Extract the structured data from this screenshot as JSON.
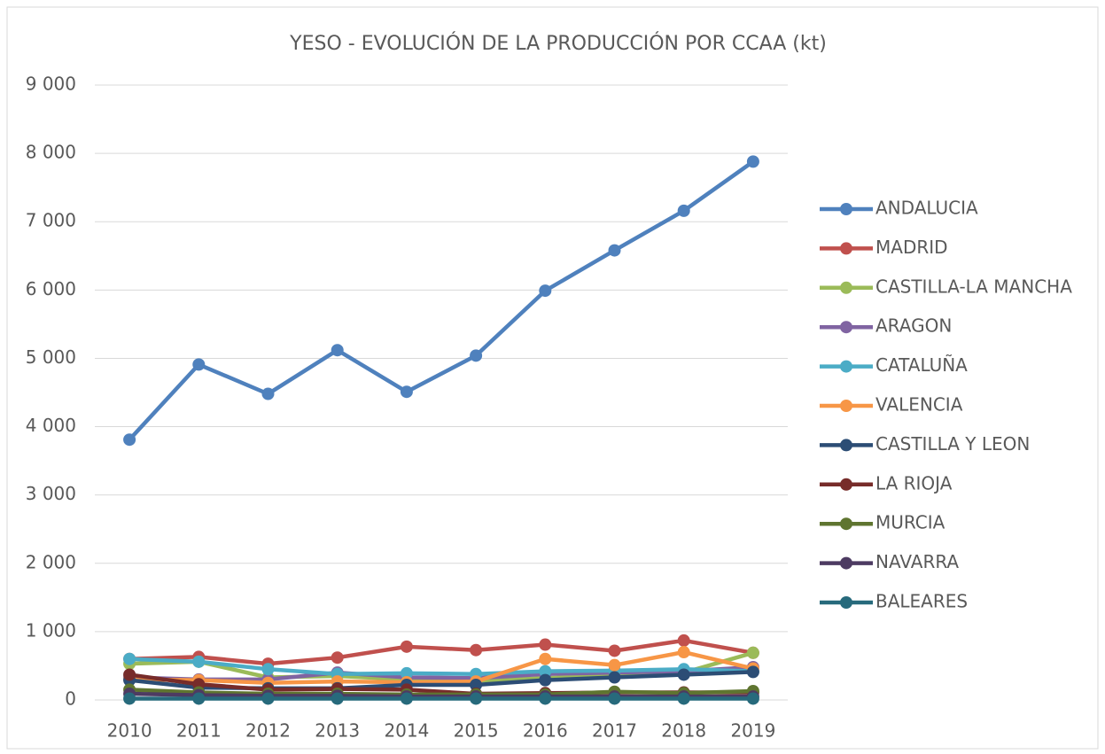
{
  "chart_data": {
    "type": "line",
    "title": "YESO - EVOLUCIÓN DE LA PRODUCCIÓN POR CCAA (kt)",
    "categories": [
      "2010",
      "2011",
      "2012",
      "2013",
      "2014",
      "2015",
      "2016",
      "2017",
      "2018",
      "2019"
    ],
    "ylim": [
      0,
      9000
    ],
    "yticks": [
      {
        "value": 0,
        "label": "0"
      },
      {
        "value": 1000,
        "label": "1 000"
      },
      {
        "value": 2000,
        "label": "2 000"
      },
      {
        "value": 3000,
        "label": "3 000"
      },
      {
        "value": 4000,
        "label": "4 000"
      },
      {
        "value": 5000,
        "label": "5 000"
      },
      {
        "value": 6000,
        "label": "6 000"
      },
      {
        "value": 7000,
        "label": "7 000"
      },
      {
        "value": 8000,
        "label": "8 000"
      },
      {
        "value": 9000,
        "label": "9 000"
      }
    ],
    "grid": true,
    "legend": "right",
    "series": [
      {
        "name": "ANDALUCIA",
        "color": "#4f81bd",
        "values": [
          3810,
          4910,
          4480,
          5120,
          4510,
          5040,
          5990,
          6580,
          7160,
          7880
        ]
      },
      {
        "name": "MADRID",
        "color": "#c0504d",
        "values": [
          600,
          630,
          530,
          620,
          780,
          730,
          810,
          720,
          870,
          690
        ]
      },
      {
        "name": "CASTILLA-LA MANCHA",
        "color": "#9bbb59",
        "values": [
          530,
          560,
          330,
          350,
          300,
          280,
          320,
          360,
          400,
          690
        ]
      },
      {
        "name": "ARAGON",
        "color": "#8064a2",
        "values": [
          330,
          300,
          300,
          400,
          330,
          320,
          380,
          400,
          420,
          480
        ]
      },
      {
        "name": "CATALUÑA",
        "color": "#4bacc6",
        "values": [
          600,
          560,
          450,
          380,
          390,
          380,
          420,
          430,
          450,
          420
        ]
      },
      {
        "name": "VALENCIA",
        "color": "#f79646",
        "values": [
          300,
          290,
          250,
          270,
          260,
          270,
          600,
          510,
          700,
          460
        ]
      },
      {
        "name": "CASTILLA Y LEON",
        "color": "#2c4d75",
        "values": [
          290,
          180,
          170,
          170,
          220,
          220,
          290,
          330,
          370,
          410
        ]
      },
      {
        "name": "LA RIOJA",
        "color": "#772c2a",
        "values": [
          370,
          230,
          150,
          160,
          150,
          90,
          100,
          110,
          110,
          110
        ]
      },
      {
        "name": "MURCIA",
        "color": "#5f7530",
        "values": [
          150,
          110,
          90,
          90,
          80,
          80,
          80,
          120,
          100,
          130
        ]
      },
      {
        "name": "NAVARRA",
        "color": "#4d3b62",
        "values": [
          90,
          70,
          60,
          60,
          50,
          50,
          50,
          50,
          50,
          50
        ]
      },
      {
        "name": "BALEARES",
        "color": "#276a7c",
        "values": [
          20,
          20,
          20,
          20,
          20,
          20,
          20,
          20,
          20,
          20
        ]
      }
    ]
  }
}
